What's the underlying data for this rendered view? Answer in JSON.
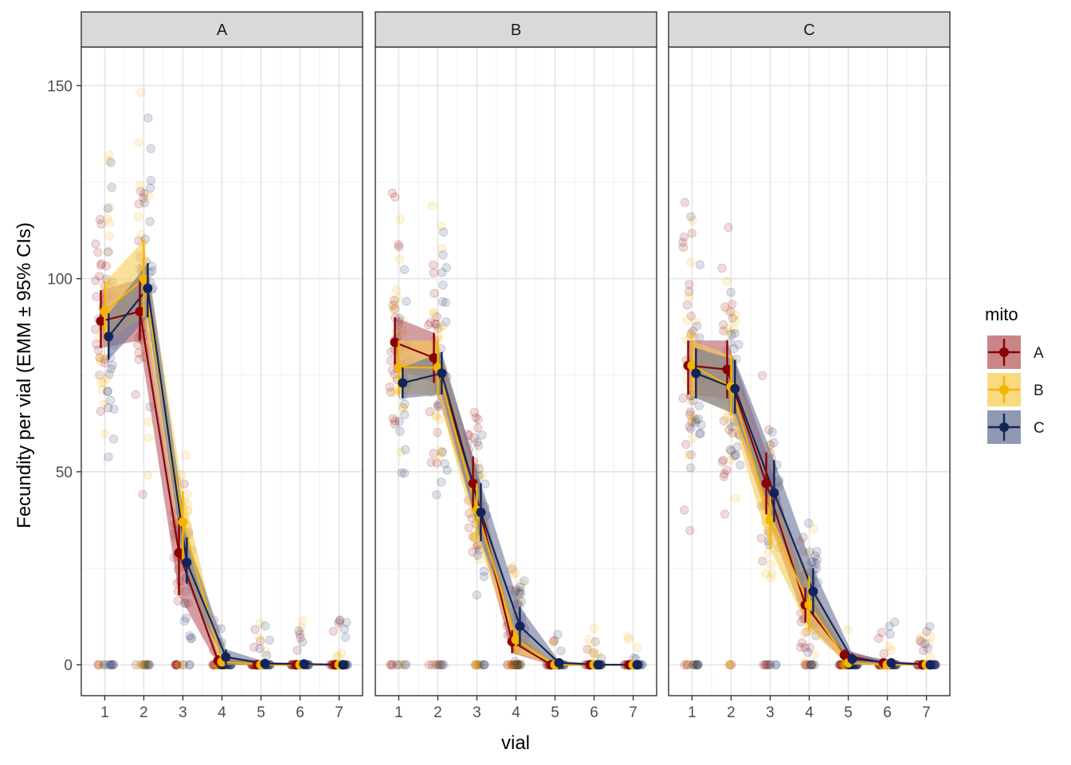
{
  "chart_data": {
    "type": "line",
    "facet_variable": "panel",
    "panels": [
      "A",
      "B",
      "C"
    ],
    "xlabel": "vial",
    "ylabel": "Fecundity per vial (EMM ± 95% CIs)",
    "x_ticks": [
      1,
      2,
      3,
      4,
      5,
      6,
      7
    ],
    "y_ticks": [
      0,
      50,
      100,
      150
    ],
    "xlim": [
      0.4,
      7.6
    ],
    "ylim": [
      -8,
      160
    ],
    "legend": {
      "title": "mito",
      "position": "right",
      "entries": [
        {
          "label": "A",
          "color": "#8b0000",
          "fill": "#b85c62"
        },
        {
          "label": "B",
          "color": "#f4b400",
          "fill": "#f7cd55"
        },
        {
          "label": "C",
          "color": "#14245a",
          "fill": "#6b7598"
        }
      ]
    },
    "series": [
      {
        "panel": "A",
        "name": "A",
        "x": [
          1,
          2,
          3,
          4,
          5,
          6,
          7
        ],
        "y": [
          89,
          91.5,
          29,
          1,
          0,
          0,
          0
        ],
        "lower": [
          82,
          84,
          18,
          0,
          0,
          0,
          0
        ],
        "upper": [
          97,
          100,
          38,
          2.5,
          0.5,
          0.3,
          0.2
        ]
      },
      {
        "panel": "A",
        "name": "B",
        "x": [
          1,
          2,
          3,
          4,
          5,
          6,
          7
        ],
        "y": [
          91.5,
          100,
          37,
          0.8,
          0,
          0,
          0
        ],
        "lower": [
          84,
          90,
          27,
          0,
          0,
          0,
          0
        ],
        "upper": [
          99,
          110,
          45,
          2,
          0.5,
          0.3,
          0.2
        ]
      },
      {
        "panel": "A",
        "name": "C",
        "x": [
          1,
          2,
          3,
          4,
          5,
          6,
          7
        ],
        "y": [
          85,
          97.5,
          26.5,
          2,
          0.3,
          0.2,
          0
        ],
        "lower": [
          79,
          90,
          21,
          0,
          0,
          0,
          0
        ],
        "upper": [
          91,
          104,
          33,
          4,
          0.8,
          0.4,
          0.2
        ]
      },
      {
        "panel": "B",
        "name": "A",
        "x": [
          1,
          2,
          3,
          4,
          5,
          6,
          7
        ],
        "y": [
          83.5,
          79.5,
          47,
          6,
          0,
          0,
          0
        ],
        "lower": [
          77,
          73,
          40,
          3,
          0,
          0,
          0
        ],
        "upper": [
          90,
          86,
          54,
          9,
          0.5,
          0.3,
          0.2
        ]
      },
      {
        "panel": "B",
        "name": "B",
        "x": [
          1,
          2,
          3,
          4,
          5,
          6,
          7
        ],
        "y": [
          77,
          77,
          40,
          6.5,
          0,
          0,
          0
        ],
        "lower": [
          70,
          70,
          33,
          3,
          0,
          0,
          0
        ],
        "upper": [
          84,
          84,
          47,
          10,
          0.5,
          0.3,
          0.2
        ]
      },
      {
        "panel": "B",
        "name": "C",
        "x": [
          1,
          2,
          3,
          4,
          5,
          6,
          7
        ],
        "y": [
          73,
          75.5,
          39.5,
          10,
          0.5,
          0,
          0
        ],
        "lower": [
          69,
          70,
          32,
          5,
          0,
          0,
          0
        ],
        "upper": [
          77,
          81,
          47,
          15,
          1,
          0.3,
          0.2
        ]
      },
      {
        "panel": "C",
        "name": "A",
        "x": [
          1,
          2,
          3,
          4,
          5,
          6,
          7
        ],
        "y": [
          77.5,
          76.5,
          47,
          15.5,
          2.5,
          0.5,
          0
        ],
        "lower": [
          70,
          69,
          39,
          11,
          1,
          0,
          0
        ],
        "upper": [
          84,
          84,
          55,
          20,
          4,
          1,
          0.3
        ]
      },
      {
        "panel": "C",
        "name": "B",
        "x": [
          1,
          2,
          3,
          4,
          5,
          6,
          7
        ],
        "y": [
          77.5,
          72,
          37.5,
          15.5,
          0.5,
          0,
          0
        ],
        "lower": [
          70,
          65,
          30,
          9,
          0,
          0,
          0
        ],
        "upper": [
          84,
          80,
          45,
          23,
          1.5,
          0.3,
          0.2
        ]
      },
      {
        "panel": "C",
        "name": "C",
        "x": [
          1,
          2,
          3,
          4,
          5,
          6,
          7
        ],
        "y": [
          75.5,
          71.5,
          44.5,
          19,
          1.5,
          0.5,
          0
        ],
        "lower": [
          69,
          65,
          37,
          13,
          0,
          0,
          0
        ],
        "upper": [
          82,
          79,
          53,
          25,
          3,
          1,
          0.3
        ]
      }
    ]
  }
}
